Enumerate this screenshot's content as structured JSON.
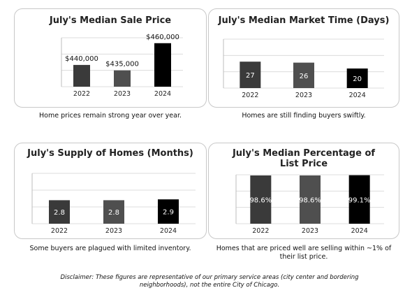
{
  "charts": [
    {
      "title": "July's Median Sale Price",
      "caption": "Home prices remain strong year over year.",
      "chart_data": {
        "type": "bar",
        "categories": [
          "2022",
          "2023",
          "2024"
        ],
        "values": [
          440000,
          435000,
          460000
        ],
        "labels": [
          "$440,000",
          "$435,000",
          "$460,000"
        ],
        "label_position": "above",
        "ylim": [
          420000,
          465000
        ],
        "colors": [
          "#3a3a3a",
          "#4f4f4f",
          "#000000"
        ]
      }
    },
    {
      "title": "July's Median Market Time (Days)",
      "caption": "Homes are still finding buyers swiftly.",
      "chart_data": {
        "type": "bar",
        "categories": [
          "2022",
          "2023",
          "2024"
        ],
        "values": [
          27,
          26,
          20
        ],
        "labels": [
          "27",
          "26",
          "20"
        ],
        "label_position": "inside",
        "ylim": [
          0,
          50
        ],
        "colors": [
          "#3a3a3a",
          "#4f4f4f",
          "#000000"
        ]
      }
    },
    {
      "title": "July's Supply of Homes (Months)",
      "caption": "Some buyers are plagued with limited inventory.",
      "chart_data": {
        "type": "bar",
        "categories": [
          "2022",
          "2023",
          "2024"
        ],
        "values": [
          2.8,
          2.8,
          2.9
        ],
        "labels": [
          "2.8",
          "2.8",
          "2.9"
        ],
        "label_position": "inside",
        "ylim": [
          0,
          6
        ],
        "colors": [
          "#3a3a3a",
          "#4f4f4f",
          "#000000"
        ]
      }
    },
    {
      "title": "July's Median Percentage of List Price",
      "caption": "Homes that are priced well are selling within ~1% of their list price.",
      "chart_data": {
        "type": "bar",
        "categories": [
          "2022",
          "2023",
          "2024"
        ],
        "values": [
          98.6,
          98.6,
          99.1
        ],
        "labels": [
          "98.6%",
          "98.6%",
          "99.1%"
        ],
        "label_position": "inside",
        "ylim": [
          0,
          100
        ],
        "colors": [
          "#3a3a3a",
          "#4f4f4f",
          "#000000"
        ]
      }
    }
  ],
  "disclaimer": "Disclaimer: These figures are representative of our primary service areas (city center and bordering neighborhoods), not the entire City of Chicago."
}
